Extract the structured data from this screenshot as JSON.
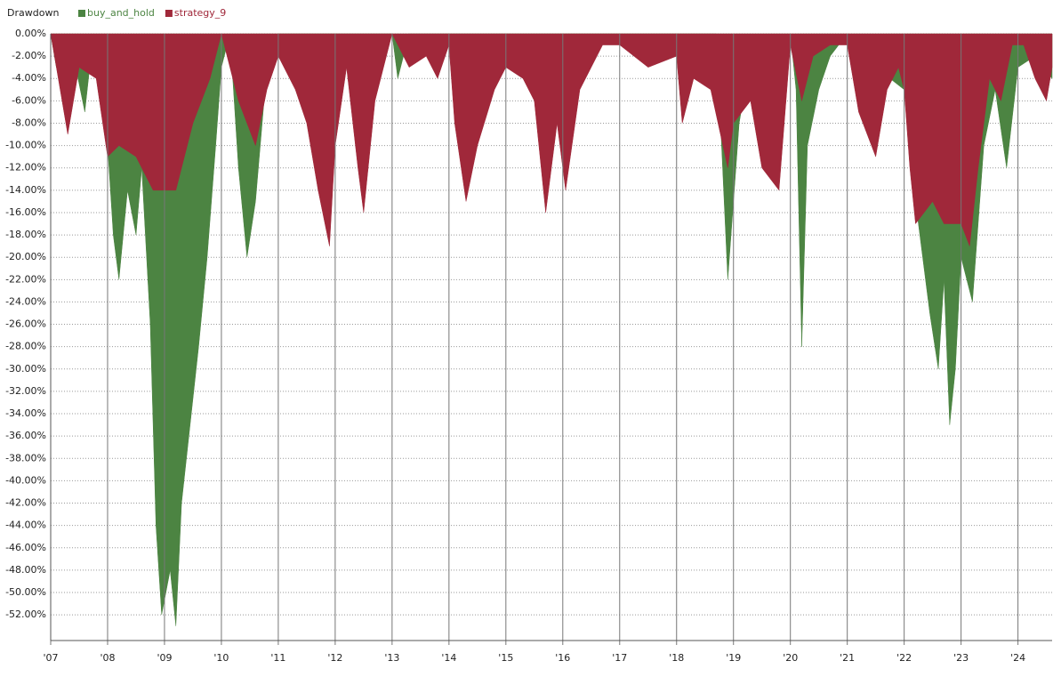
{
  "chart_data": {
    "type": "area",
    "title": "Drawdown",
    "xlim": [
      2007,
      2024.6
    ],
    "ylim": [
      -54.3,
      0
    ],
    "xticks": [
      {
        "value": 2007,
        "label": "'07"
      },
      {
        "value": 2008,
        "label": "'08"
      },
      {
        "value": 2009,
        "label": "'09"
      },
      {
        "value": 2010,
        "label": "'10"
      },
      {
        "value": 2011,
        "label": "'11"
      },
      {
        "value": 2012,
        "label": "'12"
      },
      {
        "value": 2013,
        "label": "'13"
      },
      {
        "value": 2014,
        "label": "'14"
      },
      {
        "value": 2015,
        "label": "'15"
      },
      {
        "value": 2016,
        "label": "'16"
      },
      {
        "value": 2017,
        "label": "'17"
      },
      {
        "value": 2018,
        "label": "'18"
      },
      {
        "value": 2019,
        "label": "'19"
      },
      {
        "value": 2020,
        "label": "'20"
      },
      {
        "value": 2021,
        "label": "'21"
      },
      {
        "value": 2022,
        "label": "'22"
      },
      {
        "value": 2023,
        "label": "'23"
      },
      {
        "value": 2024,
        "label": "'24"
      }
    ],
    "yticks": [
      {
        "value": 0,
        "label": "0.00%"
      },
      {
        "value": -2,
        "label": "-2.00%"
      },
      {
        "value": -4,
        "label": "-4.00%"
      },
      {
        "value": -6,
        "label": "-6.00%"
      },
      {
        "value": -8,
        "label": "-8.00%"
      },
      {
        "value": -10,
        "label": "-10.00%"
      },
      {
        "value": -12,
        "label": "-12.00%"
      },
      {
        "value": -14,
        "label": "-14.00%"
      },
      {
        "value": -16,
        "label": "-16.00%"
      },
      {
        "value": -18,
        "label": "-18.00%"
      },
      {
        "value": -20,
        "label": "-20.00%"
      },
      {
        "value": -22,
        "label": "-22.00%"
      },
      {
        "value": -24,
        "label": "-24.00%"
      },
      {
        "value": -26,
        "label": "-26.00%"
      },
      {
        "value": -28,
        "label": "-28.00%"
      },
      {
        "value": -30,
        "label": "-30.00%"
      },
      {
        "value": -32,
        "label": "-32.00%"
      },
      {
        "value": -34,
        "label": "-34.00%"
      },
      {
        "value": -36,
        "label": "-36.00%"
      },
      {
        "value": -38,
        "label": "-38.00%"
      },
      {
        "value": -40,
        "label": "-40.00%"
      },
      {
        "value": -42,
        "label": "-42.00%"
      },
      {
        "value": -44,
        "label": "-44.00%"
      },
      {
        "value": -46,
        "label": "-46.00%"
      },
      {
        "value": -48,
        "label": "-48.00%"
      },
      {
        "value": -50,
        "label": "-50.00%"
      },
      {
        "value": -52,
        "label": "-52.00%"
      }
    ],
    "grid": true,
    "series": [
      {
        "name": "buy_and_hold",
        "color": "#4c8442",
        "x": [
          2007.0,
          2007.1,
          2007.2,
          2007.4,
          2007.6,
          2007.75,
          2007.9,
          2008.0,
          2008.1,
          2008.2,
          2008.35,
          2008.5,
          2008.6,
          2008.75,
          2008.85,
          2008.95,
          2009.1,
          2009.2,
          2009.3,
          2009.45,
          2009.6,
          2009.75,
          2009.9,
          2010.0,
          2010.15,
          2010.3,
          2010.45,
          2010.6,
          2010.75,
          2010.9,
          2011.0,
          2013.0,
          2013.1,
          2013.2,
          2013.3,
          2018.7,
          2018.9,
          2019.1,
          2019.3,
          2020.0,
          2020.1,
          2020.2,
          2020.3,
          2020.5,
          2020.7,
          2021.0,
          2021.5,
          2022.0,
          2022.2,
          2022.45,
          2022.6,
          2022.7,
          2022.8,
          2022.9,
          2023.0,
          2023.2,
          2023.4,
          2023.6,
          2023.8,
          2024.0,
          2024.3,
          2024.6
        ],
        "values": [
          0,
          -3,
          -1,
          -2,
          -7,
          0,
          -5,
          -10,
          -18,
          -22,
          -14,
          -18,
          -12,
          -26,
          -44,
          -52,
          -48,
          -53,
          -42,
          -35,
          -28,
          -20,
          -10,
          -3,
          0,
          -12,
          -20,
          -15,
          -6,
          -2,
          0,
          0,
          -4,
          -2,
          0,
          0,
          -22,
          -8,
          -2,
          0,
          -5,
          -28,
          -10,
          -5,
          -2,
          0,
          -3,
          -5,
          -15,
          -25,
          -30,
          -22,
          -35,
          -30,
          -20,
          -24,
          -10,
          -5,
          -12,
          -3,
          -2,
          -4
        ]
      },
      {
        "name": "strategy_9",
        "color": "#a0283a",
        "x": [
          2007.0,
          2007.3,
          2007.5,
          2007.8,
          2008.0,
          2008.2,
          2008.5,
          2008.8,
          2009.2,
          2009.5,
          2009.8,
          2010.0,
          2010.3,
          2010.6,
          2010.8,
          2011.0,
          2011.3,
          2011.5,
          2011.7,
          2011.9,
          2012.0,
          2012.2,
          2012.4,
          2012.5,
          2012.7,
          2012.9,
          2013.0,
          2013.3,
          2013.6,
          2013.8,
          2014.0,
          2014.1,
          2014.3,
          2014.5,
          2014.8,
          2015.0,
          2015.3,
          2015.5,
          2015.7,
          2015.9,
          2016.05,
          2016.3,
          2016.5,
          2016.7,
          2017.0,
          2017.5,
          2018.0,
          2018.1,
          2018.3,
          2018.6,
          2018.9,
          2019.0,
          2019.3,
          2019.5,
          2019.8,
          2020.0,
          2020.2,
          2020.4,
          2020.7,
          2021.0,
          2021.2,
          2021.5,
          2021.7,
          2021.9,
          2022.0,
          2022.1,
          2022.2,
          2022.5,
          2022.7,
          2023.0,
          2023.15,
          2023.3,
          2023.5,
          2023.7,
          2023.9,
          2024.1,
          2024.3,
          2024.5,
          2024.6
        ],
        "values": [
          0,
          -9,
          -3,
          -4,
          -11,
          -10,
          -11,
          -14,
          -14,
          -8,
          -4,
          0,
          -6,
          -10,
          -5,
          -2,
          -5,
          -8,
          -14,
          -19,
          -10,
          -3,
          -12,
          -16,
          -6,
          -2,
          0,
          -3,
          -2,
          -4,
          -1,
          -8,
          -15,
          -10,
          -5,
          -3,
          -4,
          -6,
          -16,
          -8,
          -14,
          -5,
          -3,
          -1,
          -1,
          -3,
          -2,
          -8,
          -4,
          -5,
          -12,
          -8,
          -6,
          -12,
          -14,
          -1,
          -6,
          -2,
          -1,
          -1,
          -7,
          -11,
          -5,
          -3,
          -5,
          -12,
          -17,
          -15,
          -17,
          -17,
          -19,
          -12,
          -4,
          -6,
          -1,
          -1,
          -4,
          -6,
          -3
        ]
      }
    ]
  }
}
